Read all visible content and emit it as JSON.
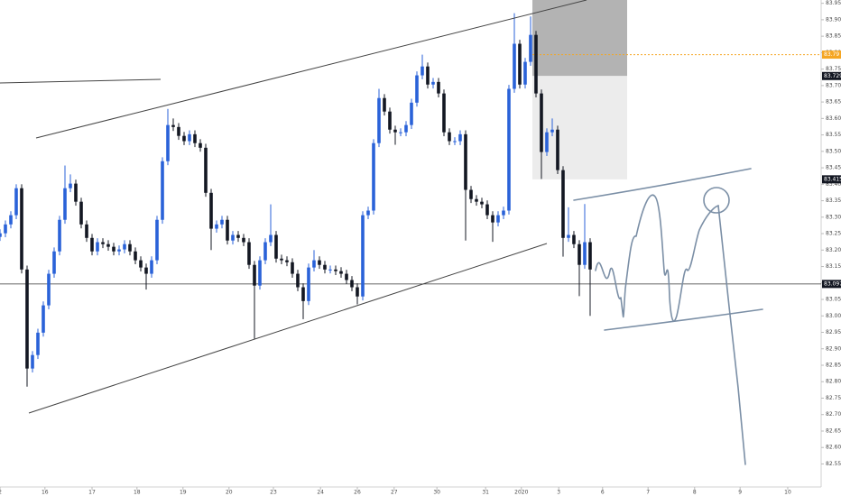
{
  "chart_data": {
    "type": "candlestick",
    "up_color": "#2a62d8",
    "down_color": "#131722",
    "xlim": [
      0,
      151.67
    ],
    "ylim": [
      82.48,
      83.96
    ],
    "xticks": [
      {
        "value": 0,
        "label": "2"
      },
      {
        "value": 8.3,
        "label": "16"
      },
      {
        "value": 17,
        "label": "17"
      },
      {
        "value": 25.3,
        "label": "18"
      },
      {
        "value": 33.8,
        "label": "19"
      },
      {
        "value": 42.3,
        "label": "20"
      },
      {
        "value": 50.5,
        "label": "23"
      },
      {
        "value": 59.2,
        "label": "24"
      },
      {
        "value": 66,
        "label": "26"
      },
      {
        "value": 72.8,
        "label": "27"
      },
      {
        "value": 80.7,
        "label": "30"
      },
      {
        "value": 89.7,
        "label": "31"
      },
      {
        "value": 96.3,
        "label": "2020"
      },
      {
        "value": 103.2,
        "label": "3"
      },
      {
        "value": 111.3,
        "label": "6"
      },
      {
        "value": 119.7,
        "label": "7"
      },
      {
        "value": 128.3,
        "label": "8"
      },
      {
        "value": 136.7,
        "label": "9"
      },
      {
        "value": 145.5,
        "label": "10"
      }
    ],
    "yticks": [
      {
        "value": 83.95,
        "label": "83.950"
      },
      {
        "value": 83.9,
        "label": "83.900"
      },
      {
        "value": 83.85,
        "label": "83.850"
      },
      {
        "value": 83.8,
        "label": "83.800"
      },
      {
        "value": 83.75,
        "label": "83.750"
      },
      {
        "value": 83.7,
        "label": "83.700"
      },
      {
        "value": 83.65,
        "label": "83.650"
      },
      {
        "value": 83.6,
        "label": "83.600"
      },
      {
        "value": 83.55,
        "label": "83.550"
      },
      {
        "value": 83.5,
        "label": "83.500"
      },
      {
        "value": 83.45,
        "label": "83.450"
      },
      {
        "value": 83.4,
        "label": "83.400"
      },
      {
        "value": 83.35,
        "label": "83.350"
      },
      {
        "value": 83.3,
        "label": "83.300"
      },
      {
        "value": 83.25,
        "label": "83.250"
      },
      {
        "value": 83.2,
        "label": "83.200"
      },
      {
        "value": 83.15,
        "label": "83.150"
      },
      {
        "value": 83.1,
        "label": "83.100"
      },
      {
        "value": 83.05,
        "label": "83.050"
      },
      {
        "value": 83.0,
        "label": "83.000"
      },
      {
        "value": 82.95,
        "label": "82.950"
      },
      {
        "value": 82.9,
        "label": "82.900"
      },
      {
        "value": 82.85,
        "label": "82.850"
      },
      {
        "value": 82.8,
        "label": "82.800"
      },
      {
        "value": 82.75,
        "label": "82.750"
      },
      {
        "value": 82.7,
        "label": "82.700"
      },
      {
        "value": 82.65,
        "label": "82.650"
      },
      {
        "value": 82.6,
        "label": "82.600"
      },
      {
        "value": 82.55,
        "label": "82.550"
      }
    ],
    "price_markers": [
      {
        "value": 83.794,
        "label": "83.79",
        "color": "#f5a623"
      },
      {
        "value": 83.729,
        "label": "83.729",
        "color": "#131722"
      },
      {
        "value": 83.415,
        "label": "83.415",
        "color": "#131722"
      },
      {
        "value": 83.097,
        "label": "83.097",
        "color": "#131722"
      }
    ],
    "ohlc": [
      [
        83.24,
        83.263,
        83.228,
        83.251
      ],
      [
        83.251,
        83.29,
        83.239,
        83.278
      ],
      [
        83.278,
        83.318,
        83.266,
        83.306
      ],
      [
        83.306,
        83.4,
        83.294,
        83.388
      ],
      [
        83.388,
        83.4,
        83.129,
        83.141
      ],
      [
        83.141,
        83.153,
        82.785,
        82.84
      ],
      [
        82.84,
        82.893,
        82.828,
        82.881
      ],
      [
        82.881,
        82.961,
        82.869,
        82.949
      ],
      [
        82.949,
        83.044,
        82.937,
        83.032
      ],
      [
        83.032,
        83.14,
        83.02,
        83.128
      ],
      [
        83.128,
        83.208,
        83.116,
        83.196
      ],
      [
        83.196,
        83.304,
        83.184,
        83.292
      ],
      [
        83.292,
        83.457,
        83.28,
        83.388
      ],
      [
        83.388,
        83.43,
        83.376,
        83.402
      ],
      [
        83.402,
        83.414,
        83.335,
        83.347
      ],
      [
        83.347,
        83.359,
        83.266,
        83.278
      ],
      [
        83.278,
        83.29,
        83.225,
        83.237
      ],
      [
        83.237,
        83.249,
        83.184,
        83.196
      ],
      [
        83.196,
        83.236,
        83.184,
        83.224
      ],
      [
        83.224,
        83.236,
        83.206,
        83.218
      ],
      [
        83.218,
        83.23,
        83.198,
        83.21
      ],
      [
        83.21,
        83.222,
        83.184,
        83.196
      ],
      [
        83.196,
        83.214,
        83.184,
        83.202
      ],
      [
        83.202,
        83.23,
        83.19,
        83.218
      ],
      [
        83.218,
        83.23,
        83.184,
        83.196
      ],
      [
        83.196,
        83.208,
        83.157,
        83.169
      ],
      [
        83.169,
        83.181,
        83.135,
        83.147
      ],
      [
        83.147,
        83.159,
        83.08,
        83.128
      ],
      [
        83.128,
        83.181,
        83.116,
        83.169
      ],
      [
        83.169,
        83.304,
        83.157,
        83.292
      ],
      [
        83.292,
        83.482,
        83.28,
        83.47
      ],
      [
        83.47,
        83.629,
        83.458,
        83.58
      ],
      [
        83.58,
        83.6,
        83.562,
        83.574
      ],
      [
        83.574,
        83.586,
        83.535,
        83.547
      ],
      [
        83.547,
        83.559,
        83.519,
        83.531
      ],
      [
        83.531,
        83.564,
        83.519,
        83.552
      ],
      [
        83.552,
        83.564,
        83.513,
        83.525
      ],
      [
        83.525,
        83.537,
        83.499,
        83.511
      ],
      [
        83.511,
        83.523,
        83.362,
        83.374
      ],
      [
        83.374,
        83.386,
        83.2,
        83.265
      ],
      [
        83.265,
        83.29,
        83.253,
        83.278
      ],
      [
        83.278,
        83.304,
        83.266,
        83.292
      ],
      [
        83.292,
        83.304,
        83.217,
        83.229
      ],
      [
        83.229,
        83.258,
        83.217,
        83.246
      ],
      [
        83.246,
        83.258,
        83.225,
        83.237
      ],
      [
        83.237,
        83.249,
        83.212,
        83.224
      ],
      [
        83.224,
        83.236,
        83.143,
        83.155
      ],
      [
        83.155,
        83.167,
        82.93,
        83.092
      ],
      [
        83.092,
        83.181,
        83.08,
        83.169
      ],
      [
        83.169,
        83.236,
        83.157,
        83.224
      ],
      [
        83.224,
        83.339,
        83.212,
        83.246
      ],
      [
        83.246,
        83.258,
        83.162,
        83.174
      ],
      [
        83.174,
        83.186,
        83.157,
        83.169
      ],
      [
        83.169,
        83.181,
        83.151,
        83.163
      ],
      [
        83.163,
        83.175,
        83.116,
        83.128
      ],
      [
        83.128,
        83.14,
        83.075,
        83.087
      ],
      [
        83.087,
        83.099,
        82.99,
        83.045
      ],
      [
        83.045,
        83.159,
        83.033,
        83.147
      ],
      [
        83.147,
        83.2,
        83.135,
        83.169
      ],
      [
        83.169,
        83.181,
        83.143,
        83.155
      ],
      [
        83.155,
        83.167,
        83.129,
        83.141
      ],
      [
        83.141,
        83.153,
        83.129,
        83.141
      ],
      [
        83.141,
        83.153,
        83.124,
        83.136
      ],
      [
        83.136,
        83.148,
        83.116,
        83.128
      ],
      [
        83.128,
        83.14,
        83.097,
        83.109
      ],
      [
        83.109,
        83.121,
        83.075,
        83.087
      ],
      [
        83.087,
        83.099,
        83.035,
        83.059
      ],
      [
        83.059,
        83.318,
        83.047,
        83.306
      ],
      [
        83.306,
        83.332,
        83.294,
        83.32
      ],
      [
        83.32,
        83.537,
        83.308,
        83.525
      ],
      [
        83.525,
        83.69,
        83.513,
        83.662
      ],
      [
        83.662,
        83.674,
        83.609,
        83.621
      ],
      [
        83.621,
        83.633,
        83.554,
        83.566
      ],
      [
        83.566,
        83.578,
        83.52,
        83.558
      ],
      [
        83.558,
        83.57,
        83.546,
        83.558
      ],
      [
        83.558,
        83.592,
        83.546,
        83.58
      ],
      [
        83.58,
        83.66,
        83.568,
        83.648
      ],
      [
        83.648,
        83.743,
        83.636,
        83.731
      ],
      [
        83.731,
        83.794,
        83.719,
        83.758
      ],
      [
        83.758,
        83.77,
        83.691,
        83.703
      ],
      [
        83.703,
        83.723,
        83.691,
        83.711
      ],
      [
        83.711,
        83.723,
        83.664,
        83.676
      ],
      [
        83.676,
        83.688,
        83.546,
        83.558
      ],
      [
        83.558,
        83.57,
        83.519,
        83.531
      ],
      [
        83.531,
        83.543,
        83.519,
        83.531
      ],
      [
        83.531,
        83.564,
        83.519,
        83.552
      ],
      [
        83.552,
        83.564,
        83.229,
        83.383
      ],
      [
        83.383,
        83.395,
        83.343,
        83.355
      ],
      [
        83.355,
        83.367,
        83.335,
        83.347
      ],
      [
        83.347,
        83.359,
        83.327,
        83.339
      ],
      [
        83.339,
        83.351,
        83.294,
        83.306
      ],
      [
        83.306,
        83.318,
        83.225,
        83.284
      ],
      [
        83.284,
        83.318,
        83.272,
        83.306
      ],
      [
        83.306,
        83.332,
        83.294,
        83.32
      ],
      [
        83.32,
        83.702,
        83.308,
        83.69
      ],
      [
        83.69,
        83.92,
        83.678,
        83.827
      ],
      [
        83.827,
        83.839,
        83.691,
        83.703
      ],
      [
        83.703,
        83.784,
        83.691,
        83.772
      ],
      [
        83.772,
        83.91,
        83.76,
        83.854
      ],
      [
        83.854,
        83.866,
        83.664,
        83.676
      ],
      [
        83.676,
        83.688,
        83.416,
        83.498
      ],
      [
        83.498,
        83.57,
        83.486,
        83.558
      ],
      [
        83.558,
        83.6,
        83.546,
        83.566
      ],
      [
        83.566,
        83.578,
        83.431,
        83.443
      ],
      [
        83.443,
        83.455,
        83.18,
        83.237
      ],
      [
        83.237,
        83.33,
        83.225,
        83.246
      ],
      [
        83.246,
        83.258,
        83.206,
        83.218
      ],
      [
        83.218,
        83.23,
        83.06,
        83.155
      ],
      [
        83.155,
        83.34,
        83.143,
        83.224
      ],
      [
        83.224,
        83.236,
        83.0,
        83.141
      ]
    ]
  }
}
